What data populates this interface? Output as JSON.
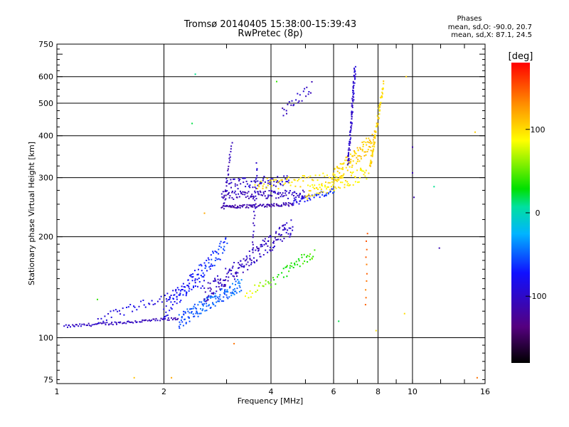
{
  "header": {
    "title": "Tromsø 20140405 15:38:00-15:39:43",
    "subtitle": "RwPretec (8p)"
  },
  "stats": {
    "heading": "Phases",
    "o_line": "mean, sd,O: -90.0, 20.7",
    "x_line": "mean, sd,X:  87.1, 24.5"
  },
  "colorbar": {
    "unit_label": "[deg]",
    "ticks": [
      "100",
      "0",
      "-100"
    ],
    "tick_values": [
      100,
      0,
      -100
    ],
    "range": [
      -180,
      180
    ]
  },
  "chart_data": {
    "type": "scatter",
    "title": "Tromsø 20140405 15:38:00-15:39:43",
    "subtitle": "RwPretec (8p)",
    "xlabel": "Frequency [MHz]",
    "ylabel": "Stationary phase Virtual Height [km]",
    "xscale": "log",
    "yscale": "log",
    "xlim": [
      1,
      16
    ],
    "ylim": [
      73,
      750
    ],
    "xticks": [
      1,
      2,
      4,
      6,
      8,
      10,
      16
    ],
    "xtick_labels": [
      "1",
      "2",
      "4",
      "6",
      "8",
      "10",
      "16"
    ],
    "yticks": [
      75,
      100,
      200,
      300,
      400,
      500,
      600,
      750
    ],
    "ytick_labels": [
      "75",
      "100",
      "200",
      "300",
      "400",
      "500",
      "600",
      "750"
    ],
    "grid": true,
    "color_encodes": "phase [deg]",
    "traces": [
      {
        "f0": 1.05,
        "f1": 2.2,
        "h0": 108,
        "h1": 114,
        "ph0": -100,
        "ph1": -110,
        "n": 90,
        "spread": 0.01
      },
      {
        "f0": 1.3,
        "f1": 2.6,
        "h0": 113,
        "h1": 145,
        "ph0": -90,
        "ph1": -80,
        "n": 60,
        "spread": 0.03
      },
      {
        "f0": 2.2,
        "f1": 3.3,
        "h0": 112,
        "h1": 145,
        "ph0": -55,
        "ph1": -45,
        "n": 140,
        "spread": 0.05
      },
      {
        "f0": 2.0,
        "f1": 3.0,
        "h0": 120,
        "h1": 190,
        "ph0": -80,
        "ph1": -60,
        "n": 120,
        "spread": 0.06
      },
      {
        "f0": 2.6,
        "f1": 4.6,
        "h0": 135,
        "h1": 215,
        "ph0": -105,
        "ph1": -100,
        "n": 180,
        "spread": 0.06
      },
      {
        "f0": 3.4,
        "f1": 4.2,
        "h0": 135,
        "h1": 150,
        "ph0": 95,
        "ph1": 30,
        "n": 25,
        "spread": 0.04
      },
      {
        "f0": 4.3,
        "f1": 5.3,
        "h0": 155,
        "h1": 180,
        "ph0": 30,
        "ph1": 45,
        "n": 35,
        "spread": 0.04
      },
      {
        "f0": 2.9,
        "f1": 4.6,
        "h0": 245,
        "h1": 250,
        "ph0": -115,
        "ph1": -115,
        "n": 90,
        "spread": 0.012
      },
      {
        "f0": 4.6,
        "f1": 6.0,
        "h0": 252,
        "h1": 275,
        "ph0": -85,
        "ph1": -60,
        "n": 50,
        "spread": 0.02
      },
      {
        "f0": 2.9,
        "f1": 5.0,
        "h0": 265,
        "h1": 268,
        "ph0": -110,
        "ph1": -100,
        "n": 110,
        "spread": 0.03
      },
      {
        "f0": 3.0,
        "f1": 4.5,
        "h0": 285,
        "h1": 295,
        "ph0": -100,
        "ph1": -95,
        "n": 70,
        "spread": 0.04
      },
      {
        "f0": 3.6,
        "f1": 6.3,
        "h0": 285,
        "h1": 300,
        "ph0": 100,
        "ph1": 95,
        "n": 70,
        "spread": 0.04
      },
      {
        "f0": 5.0,
        "f1": 7.5,
        "h0": 270,
        "h1": 310,
        "ph0": 95,
        "ph1": 90,
        "n": 80,
        "spread": 0.05
      },
      {
        "f0": 6.0,
        "f1": 7.8,
        "h0": 300,
        "h1": 390,
        "ph0": 100,
        "ph1": 110,
        "n": 100,
        "spread": 0.06
      },
      {
        "f0": 6.6,
        "f1": 6.9,
        "h0": 330,
        "h1": 640,
        "ph0": -100,
        "ph1": -95,
        "n": 90,
        "spread": 0.02
      },
      {
        "f0": 7.6,
        "f1": 8.3,
        "h0": 320,
        "h1": 570,
        "ph0": 105,
        "ph1": 100,
        "n": 70,
        "spread": 0.02
      },
      {
        "f0": 4.3,
        "f1": 5.2,
        "h0": 470,
        "h1": 560,
        "ph0": -105,
        "ph1": -100,
        "n": 25,
        "spread": 0.04
      },
      {
        "f0": 2.95,
        "f1": 3.1,
        "h0": 250,
        "h1": 380,
        "ph0": -110,
        "ph1": -105,
        "n": 25,
        "spread": 0.01
      },
      {
        "f0": 3.55,
        "f1": 3.65,
        "h0": 180,
        "h1": 330,
        "ph0": -105,
        "ph1": -95,
        "n": 25,
        "spread": 0.01
      },
      {
        "f0": 7.4,
        "f1": 7.45,
        "h0": 125,
        "h1": 205,
        "ph0": 140,
        "ph1": 150,
        "n": 10,
        "spread": 0.005
      }
    ],
    "points": [
      {
        "x": 2.45,
        "y": 610,
        "phase": 10
      },
      {
        "x": 2.4,
        "y": 435,
        "phase": 20
      },
      {
        "x": 1.3,
        "y": 130,
        "phase": 40
      },
      {
        "x": 3.15,
        "y": 96,
        "phase": 140
      },
      {
        "x": 1.65,
        "y": 76,
        "phase": 110
      },
      {
        "x": 2.1,
        "y": 76,
        "phase": 120
      },
      {
        "x": 10.0,
        "y": 370,
        "phase": -115
      },
      {
        "x": 10.0,
        "y": 310,
        "phase": -110
      },
      {
        "x": 10.1,
        "y": 262,
        "phase": -110
      },
      {
        "x": 11.5,
        "y": 282,
        "phase": 10
      },
      {
        "x": 11.9,
        "y": 185,
        "phase": -110
      },
      {
        "x": 15.0,
        "y": 410,
        "phase": 105
      },
      {
        "x": 15.2,
        "y": 76,
        "phase": 140
      },
      {
        "x": 6.2,
        "y": 112,
        "phase": 20
      },
      {
        "x": 7.9,
        "y": 105,
        "phase": 100
      },
      {
        "x": 9.5,
        "y": 118,
        "phase": 100
      },
      {
        "x": 9.6,
        "y": 600,
        "phase": 105
      },
      {
        "x": 4.15,
        "y": 580,
        "phase": 40
      },
      {
        "x": 2.6,
        "y": 235,
        "phase": 120
      }
    ]
  }
}
